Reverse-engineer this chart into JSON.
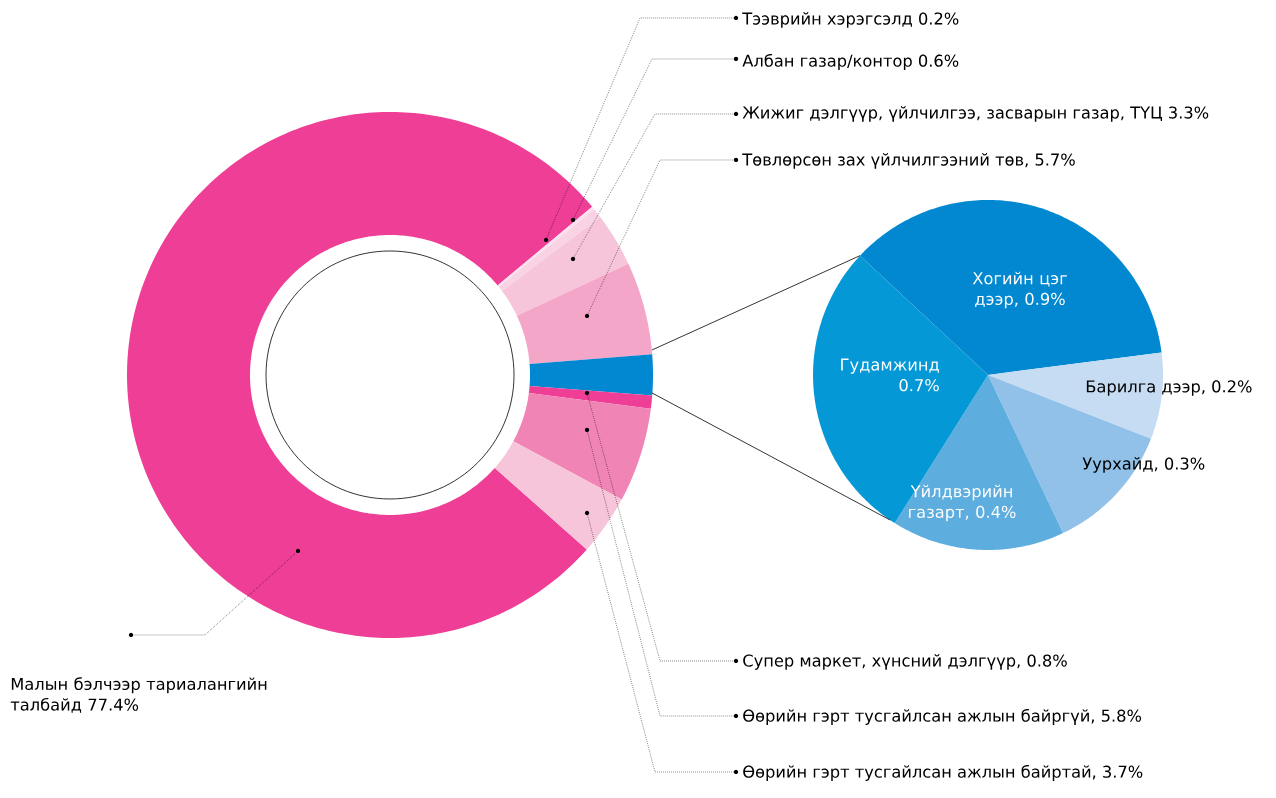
{
  "chart_data": [
    {
      "type": "donut",
      "categories": [
        "Малын бэлчээр тариалангийн талбайд",
        "Тээврийн хэрэгсэлд",
        "Албан газар/контор",
        "Жижиг дэлгүүр, үйлчилгээ, засварын газар, ТҮЦ",
        "Төвлөрсөн зах үйлчилгээний төв",
        null,
        "Супер маркет, хүнсний дэлгүүр",
        "Өөрийн гэрт тусгайлсан ажлын байргүй",
        "Өөрийн гэрт тусгайлсан ажлын байртай"
      ],
      "values": [
        77.4,
        0.2,
        0.6,
        3.3,
        5.7,
        2.5,
        0.8,
        5.8,
        3.7
      ],
      "value_labels": [
        "77.4%",
        "0.2%",
        "0.6%",
        "3.3%",
        ", 5.7%",
        null,
        ", 0.8%",
        ", 5.8%",
        ", 3.7%"
      ],
      "colors": [
        "#ee3e96",
        "#fbe1ee",
        "#f9d3e4",
        "#f7c5da",
        "#f4a6c9",
        "#0288d1",
        "#ee3e96",
        "#f084b5",
        "#f7c5da"
      ]
    },
    {
      "type": "pie",
      "categories": [
        "Хогийн цэг дээр",
        "Барилга дээр",
        "Уурхайд",
        "Үйлдвэрийн газарт",
        "Гудамжинд"
      ],
      "values": [
        0.9,
        0.2,
        0.3,
        0.4,
        0.7
      ],
      "value_labels": [
        ", 0.9%",
        ", 0.2%",
        ", 0.3%",
        ", 0.4%",
        "0.7%"
      ],
      "colors": [
        "#0288d1",
        "#c6dcf2",
        "#91c1e8",
        "#5eaddf",
        "#0499d6"
      ]
    }
  ]
}
